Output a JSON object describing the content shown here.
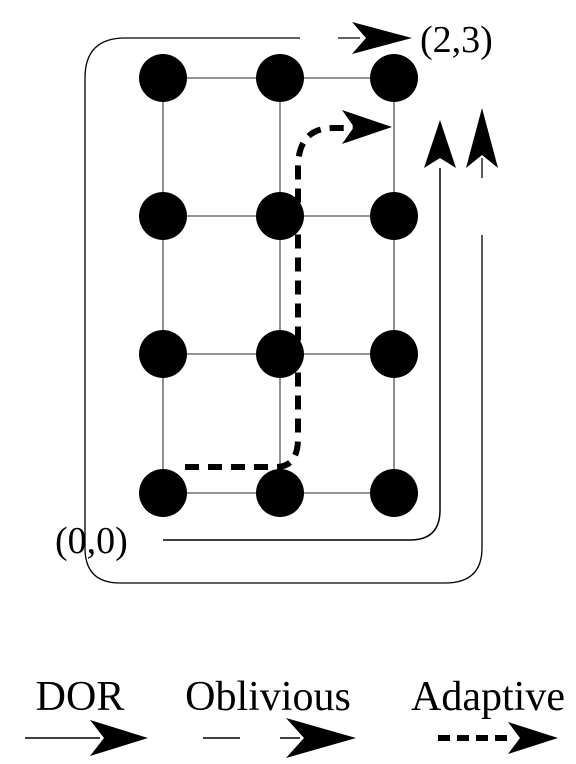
{
  "grid": {
    "columns": 3,
    "rows": 4,
    "node_color": "#000000",
    "edge_color": "#555555"
  },
  "labels": {
    "origin": "(0,0)",
    "destination": "(2,3)"
  },
  "legend": {
    "items": [
      {
        "label": "DOR",
        "style": "solid"
      },
      {
        "label": "Oblivious",
        "style": "broken"
      },
      {
        "label": "Adaptive",
        "style": "dashed"
      }
    ]
  },
  "colors": {
    "stroke": "#000000",
    "background": "#ffffff"
  }
}
